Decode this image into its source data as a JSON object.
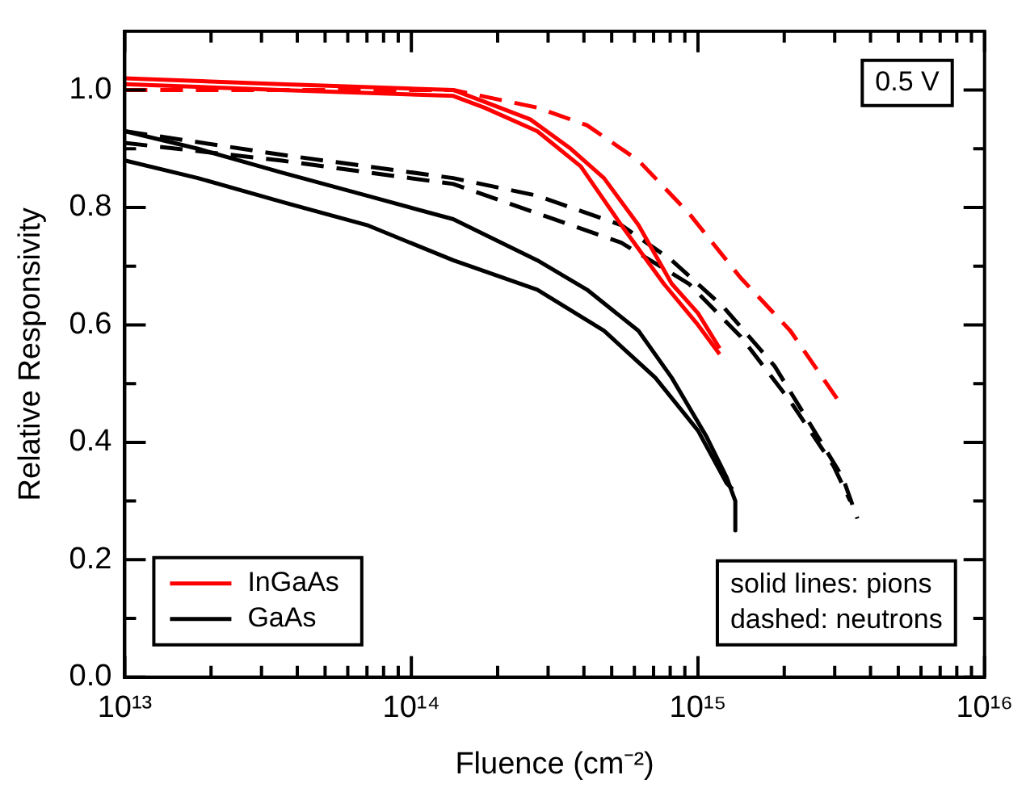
{
  "chart_data": {
    "type": "line",
    "xlabel": "Fluence (cm⁻²)",
    "ylabel": "Relative Responsivity",
    "log": "x",
    "xlim": [
      10000000000000.0,
      1e+16
    ],
    "ylim": [
      0,
      1.1
    ],
    "xticks": [
      {
        "value": 10000000000000.0,
        "label": "10¹³"
      },
      {
        "value": 20000000000000.0,
        "label": null
      },
      {
        "value": 30000000000000.0,
        "label": null
      },
      {
        "value": 40000000000000.0,
        "label": null
      },
      {
        "value": 50000000000000.0,
        "label": null
      },
      {
        "value": 60000000000000.0,
        "label": null
      },
      {
        "value": 70000000000000.0,
        "label": null
      },
      {
        "value": 80000000000000.0,
        "label": null
      },
      {
        "value": 90000000000000.0,
        "label": null
      },
      {
        "value": 100000000000000.0,
        "label": "10¹⁴"
      },
      {
        "value": 200000000000000.0,
        "label": null
      },
      {
        "value": 300000000000000.0,
        "label": null
      },
      {
        "value": 400000000000000.0,
        "label": null
      },
      {
        "value": 500000000000000.0,
        "label": null
      },
      {
        "value": 600000000000000.0,
        "label": null
      },
      {
        "value": 700000000000000.0,
        "label": null
      },
      {
        "value": 800000000000000.0,
        "label": null
      },
      {
        "value": 900000000000000.0,
        "label": null
      },
      {
        "value": 1000000000000000.0,
        "label": "10¹⁵"
      },
      {
        "value": 2000000000000000.0,
        "label": null
      },
      {
        "value": 3000000000000000.0,
        "label": null
      },
      {
        "value": 4000000000000000.0,
        "label": null
      },
      {
        "value": 5000000000000000.0,
        "label": null
      },
      {
        "value": 6000000000000000.0,
        "label": null
      },
      {
        "value": 7000000000000000.0,
        "label": null
      },
      {
        "value": 8000000000000000.0,
        "label": null
      },
      {
        "value": 9000000000000000.0,
        "label": null
      },
      {
        "value": 1e+16,
        "label": "10¹⁶"
      }
    ],
    "yticks": [
      {
        "value": 0,
        "label": "0.0"
      },
      {
        "value": 0.1,
        "label": null
      },
      {
        "value": 0.2,
        "label": "0.2"
      },
      {
        "value": 0.3,
        "label": null
      },
      {
        "value": 0.4,
        "label": "0.4"
      },
      {
        "value": 0.5,
        "label": null
      },
      {
        "value": 0.6,
        "label": "0.6"
      },
      {
        "value": 0.7,
        "label": null
      },
      {
        "value": 0.8,
        "label": "0.8"
      },
      {
        "value": 0.9,
        "label": null
      },
      {
        "value": 1.0,
        "label": "1.0"
      }
    ],
    "grid": false,
    "legend": "bottom left",
    "marker": "none",
    "annotations": [
      "0.5 V",
      "solid lines: pions",
      "dashed: neutrons"
    ],
    "series": [
      {
        "name": "InGaAs",
        "color": "#ff0000",
        "line_style": "solid",
        "x": [
          10000000000000.0,
          35000000000000.0,
          140000000000000.0,
          180000000000000.0,
          260000000000000.0,
          360000000000000.0,
          470000000000000.0,
          620000000000000.0,
          810000000000000.0,
          1000000000000000.0,
          1190000000000000.0
        ],
        "values": [
          1.02,
          1.01,
          1.0,
          0.98,
          0.95,
          0.9,
          0.85,
          0.77,
          0.67,
          0.62,
          0.56
        ]
      },
      {
        "color": "#ff0000",
        "line_style": "solid",
        "x": [
          10000000000000.0,
          35000000000000.0,
          140000000000000.0,
          180000000000000.0,
          275000000000000.0,
          390000000000000.0,
          540000000000000.0,
          760000000000000.0,
          1000000000000000.0,
          1190000000000000.0
        ],
        "values": [
          1.01,
          1.0,
          0.99,
          0.97,
          0.93,
          0.87,
          0.77,
          0.67,
          0.6,
          0.55
        ]
      },
      {
        "color": "#ff0000",
        "line_style": "dashed",
        "x": [
          10000000000000.0,
          35000000000000.0,
          140000000000000.0,
          275000000000000.0,
          410000000000000.0,
          620000000000000.0,
          930000000000000.0,
          1410000000000000.0,
          2100000000000000.0,
          3100000000000000.0
        ],
        "values": [
          1.0,
          1.0,
          1.0,
          0.97,
          0.94,
          0.88,
          0.79,
          0.68,
          0.59,
          0.47
        ]
      },
      {
        "name": "GaAs",
        "color": "#000000",
        "line_style": "solid",
        "x": [
          10000000000000.0,
          18000000000000.0,
          35000000000000.0,
          70000000000000.0,
          140000000000000.0,
          275000000000000.0,
          410000000000000.0,
          620000000000000.0,
          810000000000000.0,
          1070000000000000.0,
          1260000000000000.0,
          1350000000000000.0,
          1350000000000000.0
        ],
        "values": [
          0.93,
          0.9,
          0.86,
          0.82,
          0.78,
          0.71,
          0.66,
          0.59,
          0.51,
          0.41,
          0.34,
          0.3,
          0.25
        ]
      },
      {
        "color": "#000000",
        "line_style": "solid",
        "x": [
          10000000000000.0,
          18000000000000.0,
          35000000000000.0,
          70000000000000.0,
          140000000000000.0,
          275000000000000.0,
          470000000000000.0,
          710000000000000.0,
          1000000000000000.0,
          1260000000000000.0,
          1320000000000000.0
        ],
        "values": [
          0.88,
          0.85,
          0.81,
          0.77,
          0.71,
          0.66,
          0.59,
          0.51,
          0.42,
          0.33,
          0.32
        ]
      },
      {
        "color": "#000000",
        "line_style": "dashed",
        "x": [
          10000000000000.0,
          35000000000000.0,
          140000000000000.0,
          275000000000000.0,
          540000000000000.0,
          810000000000000.0,
          1230000000000000.0,
          1850000000000000.0,
          2400000000000000.0,
          3200000000000000.0,
          3600000000000000.0
        ],
        "values": [
          0.93,
          0.89,
          0.85,
          0.82,
          0.77,
          0.71,
          0.63,
          0.53,
          0.44,
          0.34,
          0.27
        ]
      },
      {
        "color": "#000000",
        "line_style": "dashed",
        "x": [
          10000000000000.0,
          35000000000000.0,
          140000000000000.0,
          275000000000000.0,
          540000000000000.0,
          930000000000000.0,
          1410000000000000.0,
          2100000000000000.0,
          2970000000000000.0,
          3400000000000000.0
        ],
        "values": [
          0.91,
          0.88,
          0.84,
          0.79,
          0.74,
          0.67,
          0.58,
          0.47,
          0.36,
          0.3
        ]
      }
    ]
  }
}
